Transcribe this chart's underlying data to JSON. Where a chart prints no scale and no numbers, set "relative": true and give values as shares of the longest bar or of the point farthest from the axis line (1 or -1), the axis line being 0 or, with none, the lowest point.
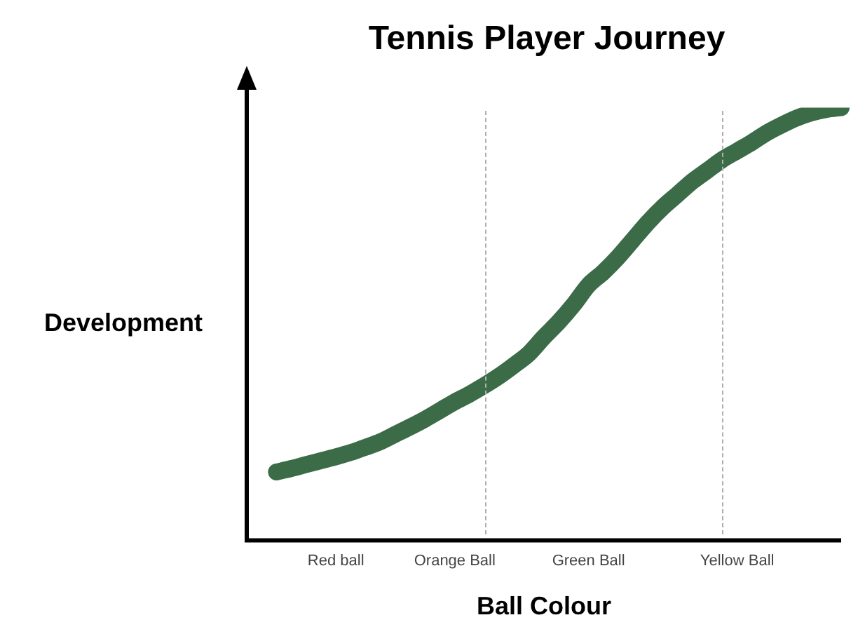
{
  "chart_data": {
    "type": "line",
    "title": "Tennis Player Journey",
    "xlabel": "Ball Colour",
    "ylabel": "Development",
    "relative": true,
    "categories": [
      null,
      null,
      null,
      null,
      null,
      null,
      "Red ball",
      null,
      null,
      null,
      null,
      null,
      null,
      null,
      "Orange Ball",
      null,
      null,
      null,
      null,
      null,
      null,
      null,
      null,
      "Green Ball",
      null,
      null,
      null,
      null,
      null,
      null,
      null,
      null,
      null,
      "Yellow Ball",
      null,
      null,
      null,
      null,
      null,
      null,
      null
    ],
    "values": [
      null,
      null,
      0.158,
      0.166,
      0.175,
      0.184,
      0.193,
      0.203,
      0.215,
      0.228,
      0.245,
      0.262,
      0.28,
      0.3,
      0.32,
      0.338,
      0.358,
      0.38,
      0.405,
      0.432,
      0.47,
      0.505,
      0.545,
      0.59,
      0.62,
      0.655,
      0.695,
      0.735,
      0.77,
      0.8,
      0.83,
      0.855,
      0.88,
      0.9,
      0.92,
      0.942,
      0.96,
      0.976,
      0.988,
      0.996,
      1
    ],
    "color": "#3b6b47"
  }
}
